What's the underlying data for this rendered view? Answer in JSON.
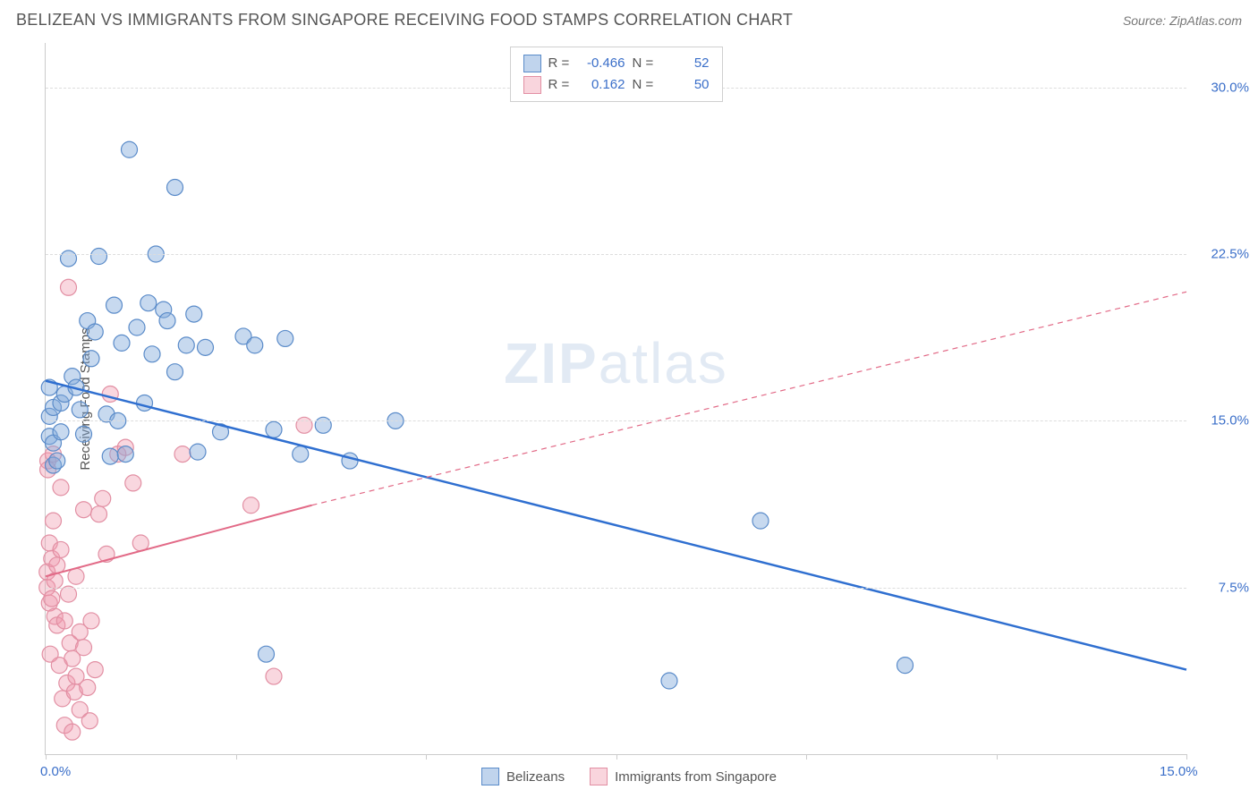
{
  "header": {
    "title": "BELIZEAN VS IMMIGRANTS FROM SINGAPORE RECEIVING FOOD STAMPS CORRELATION CHART",
    "source": "Source: ZipAtlas.com"
  },
  "chart": {
    "type": "scatter",
    "ylabel": "Receiving Food Stamps",
    "xlim": [
      0,
      15
    ],
    "ylim": [
      0,
      32
    ],
    "y_ticks": [
      7.5,
      15.0,
      22.5,
      30.0
    ],
    "y_tick_labels": [
      "7.5%",
      "15.0%",
      "22.5%",
      "30.0%"
    ],
    "x_tick_positions": [
      0,
      2.5,
      5,
      7.5,
      10,
      12.5,
      15
    ],
    "x_tick_labels_shown": {
      "left": "0.0%",
      "right": "15.0%"
    },
    "grid_color": "#dddddd",
    "axis_color": "#cccccc",
    "background_color": "#ffffff",
    "title_fontsize": 18,
    "label_fontsize": 15,
    "tick_fontsize": 15,
    "tick_color": "#3b6fc9",
    "marker_radius": 9,
    "marker_stroke_width": 1.2,
    "series": {
      "blue": {
        "name": "Belizeans",
        "fill": "rgba(130,170,220,0.45)",
        "stroke": "#5a8bc9",
        "trend_color": "#2f6fd0",
        "trend_width": 2.5,
        "R": "-0.466",
        "N": "52",
        "trend": {
          "x1": 0,
          "y1": 16.8,
          "x2": 15,
          "y2": 3.8
        },
        "points": [
          [
            0.05,
            16.5
          ],
          [
            0.05,
            15.2
          ],
          [
            0.05,
            14.3
          ],
          [
            0.1,
            14.0
          ],
          [
            0.1,
            15.6
          ],
          [
            0.1,
            13.0
          ],
          [
            0.15,
            13.2
          ],
          [
            0.2,
            15.8
          ],
          [
            0.2,
            14.5
          ],
          [
            0.25,
            16.2
          ],
          [
            0.3,
            22.3
          ],
          [
            0.35,
            17.0
          ],
          [
            0.4,
            16.5
          ],
          [
            0.45,
            15.5
          ],
          [
            0.5,
            14.4
          ],
          [
            0.55,
            19.5
          ],
          [
            0.6,
            17.8
          ],
          [
            0.65,
            19.0
          ],
          [
            0.7,
            22.4
          ],
          [
            0.8,
            15.3
          ],
          [
            0.85,
            13.4
          ],
          [
            0.9,
            20.2
          ],
          [
            0.95,
            15.0
          ],
          [
            1.0,
            18.5
          ],
          [
            1.05,
            13.5
          ],
          [
            1.1,
            27.2
          ],
          [
            1.2,
            19.2
          ],
          [
            1.3,
            15.8
          ],
          [
            1.35,
            20.3
          ],
          [
            1.4,
            18.0
          ],
          [
            1.45,
            22.5
          ],
          [
            1.55,
            20.0
          ],
          [
            1.6,
            19.5
          ],
          [
            1.7,
            17.2
          ],
          [
            1.7,
            25.5
          ],
          [
            1.85,
            18.4
          ],
          [
            1.95,
            19.8
          ],
          [
            2.0,
            13.6
          ],
          [
            2.1,
            18.3
          ],
          [
            2.3,
            14.5
          ],
          [
            2.6,
            18.8
          ],
          [
            2.75,
            18.4
          ],
          [
            2.9,
            4.5
          ],
          [
            3.0,
            14.6
          ],
          [
            3.15,
            18.7
          ],
          [
            3.35,
            13.5
          ],
          [
            3.65,
            14.8
          ],
          [
            4.0,
            13.2
          ],
          [
            4.6,
            15.0
          ],
          [
            8.2,
            3.3
          ],
          [
            9.4,
            10.5
          ],
          [
            11.3,
            4.0
          ]
        ]
      },
      "pink": {
        "name": "Immigrants from Singapore",
        "fill": "rgba(240,150,170,0.38)",
        "stroke": "#e28fa3",
        "trend_color": "#e26a87",
        "trend_width": 2,
        "trend_dash": "6,5",
        "R": "0.162",
        "N": "50",
        "trend_solid": {
          "x1": 0,
          "y1": 8.0,
          "x2": 3.5,
          "y2": 11.2
        },
        "trend_dashed": {
          "x1": 3.5,
          "y1": 11.2,
          "x2": 15,
          "y2": 20.8
        },
        "points": [
          [
            0.02,
            8.2
          ],
          [
            0.02,
            7.5
          ],
          [
            0.03,
            13.2
          ],
          [
            0.03,
            12.8
          ],
          [
            0.05,
            9.5
          ],
          [
            0.05,
            6.8
          ],
          [
            0.06,
            4.5
          ],
          [
            0.08,
            7.0
          ],
          [
            0.08,
            8.8
          ],
          [
            0.1,
            10.5
          ],
          [
            0.1,
            13.5
          ],
          [
            0.12,
            6.2
          ],
          [
            0.12,
            7.8
          ],
          [
            0.15,
            5.8
          ],
          [
            0.15,
            8.5
          ],
          [
            0.18,
            4.0
          ],
          [
            0.2,
            9.2
          ],
          [
            0.2,
            12.0
          ],
          [
            0.22,
            2.5
          ],
          [
            0.25,
            1.3
          ],
          [
            0.25,
            6.0
          ],
          [
            0.28,
            3.2
          ],
          [
            0.3,
            7.2
          ],
          [
            0.3,
            21.0
          ],
          [
            0.32,
            5.0
          ],
          [
            0.35,
            1.0
          ],
          [
            0.35,
            4.3
          ],
          [
            0.38,
            2.8
          ],
          [
            0.4,
            8.0
          ],
          [
            0.4,
            3.5
          ],
          [
            0.45,
            5.5
          ],
          [
            0.45,
            2.0
          ],
          [
            0.5,
            11.0
          ],
          [
            0.5,
            4.8
          ],
          [
            0.55,
            3.0
          ],
          [
            0.58,
            1.5
          ],
          [
            0.6,
            6.0
          ],
          [
            0.65,
            3.8
          ],
          [
            0.7,
            10.8
          ],
          [
            0.75,
            11.5
          ],
          [
            0.8,
            9.0
          ],
          [
            0.85,
            16.2
          ],
          [
            0.95,
            13.5
          ],
          [
            1.05,
            13.8
          ],
          [
            1.15,
            12.2
          ],
          [
            1.25,
            9.5
          ],
          [
            1.8,
            13.5
          ],
          [
            2.7,
            11.2
          ],
          [
            3.0,
            3.5
          ],
          [
            3.4,
            14.8
          ]
        ]
      }
    },
    "watermark": {
      "prefix": "ZIP",
      "suffix": "atlas"
    },
    "legend_top": [
      {
        "swatch": "blue",
        "R": "-0.466",
        "N": "52"
      },
      {
        "swatch": "pink",
        "R": "0.162",
        "N": "50"
      }
    ],
    "legend_bottom": [
      {
        "swatch": "blue",
        "label": "Belizeans"
      },
      {
        "swatch": "pink",
        "label": "Immigrants from Singapore"
      }
    ]
  }
}
